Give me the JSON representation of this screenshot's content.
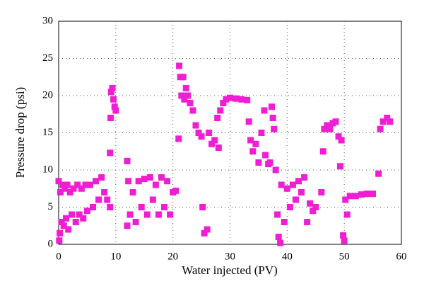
{
  "chart_data": {
    "type": "scatter",
    "xlabel": "Water injected (PV)",
    "ylabel": "Pressure drop (psi)",
    "xlim": [
      0,
      60
    ],
    "xticks": [
      0,
      10,
      20,
      30,
      40,
      50,
      60
    ],
    "ylim": [
      0,
      30
    ],
    "yticks": [
      0,
      5,
      10,
      15,
      20,
      25,
      30
    ],
    "grid": true,
    "color": "#f01ed2",
    "x": [
      0,
      0.1,
      0.2,
      0.3,
      0.5,
      0.7,
      0.9,
      1.1,
      1.3,
      1.5,
      1.7,
      2,
      2.3,
      2.6,
      3,
      3.3,
      3.6,
      4,
      4.3,
      4.7,
      5,
      5.5,
      6,
      6.5,
      7,
      7.5,
      8,
      8.5,
      9,
      9,
      9.1,
      9.2,
      9.4,
      9.6,
      9.8,
      10,
      12,
      12,
      12.2,
      12.5,
      13,
      13.5,
      14,
      14.5,
      15,
      15.5,
      16,
      16.5,
      17,
      17.5,
      18,
      18.5,
      19,
      19.5,
      20,
      20.5,
      21,
      21.1,
      21.3,
      21.5,
      21.8,
      22,
      22.3,
      22.6,
      23,
      23.5,
      24,
      24.5,
      25,
      25.2,
      25.5,
      26,
      26.3,
      26.8,
      27.3,
      27.8,
      28,
      28.3,
      28.8,
      29.3,
      30,
      31,
      32,
      33,
      33.3,
      33.6,
      34,
      34.5,
      35,
      35.5,
      36,
      36.2,
      36.7,
      37,
      37.3,
      37.5,
      37.7,
      38,
      38.3,
      38.5,
      38.8,
      39,
      39.5,
      40,
      40.5,
      41,
      41.5,
      42,
      42.5,
      43,
      43.5,
      44,
      44.5,
      45,
      46,
      46.3,
      46.5,
      47,
      47.5,
      48,
      48.5,
      49,
      49.3,
      49.5,
      49.8,
      50,
      50.2,
      50.5,
      51,
      52,
      53,
      54,
      55,
      56,
      56.3,
      56.8,
      57.5,
      58
    ],
    "values": [
      8.5,
      0.5,
      1.5,
      7,
      3,
      8,
      2.5,
      7.5,
      3.5,
      8,
      2,
      7,
      4,
      7.5,
      3,
      8,
      4,
      7.5,
      3.5,
      8,
      4.5,
      8,
      5,
      8.5,
      6,
      9,
      7,
      6,
      5,
      12.3,
      17,
      20.5,
      21,
      19.5,
      18.5,
      18,
      11.2,
      2.5,
      8.5,
      4,
      7,
      3,
      8.5,
      5,
      8.8,
      4,
      9,
      6,
      8,
      4,
      9,
      5,
      8.5,
      4,
      7,
      7.2,
      14.2,
      24,
      22.5,
      20,
      22.5,
      19.5,
      21,
      20,
      19,
      18,
      16,
      15,
      14.5,
      5,
      1.5,
      2,
      15,
      13.5,
      14,
      17,
      13,
      18,
      19,
      19.5,
      19.7,
      19.6,
      19.5,
      19.4,
      16.5,
      14,
      12.5,
      13.5,
      11,
      15,
      18,
      12,
      10.8,
      11,
      18.5,
      17,
      15.5,
      10,
      4,
      1,
      0.2,
      8,
      3,
      7.5,
      5,
      8,
      6,
      8.5,
      7,
      9,
      3,
      5.5,
      4.5,
      5,
      7,
      12.5,
      15.5,
      16,
      15.5,
      16.3,
      16.5,
      14.5,
      10.5,
      14,
      1.2,
      0.5,
      6,
      4,
      6.5,
      6.5,
      6.7,
      6.8,
      6.8,
      9.5,
      15.5,
      16.5,
      17,
      16.5
    ]
  }
}
